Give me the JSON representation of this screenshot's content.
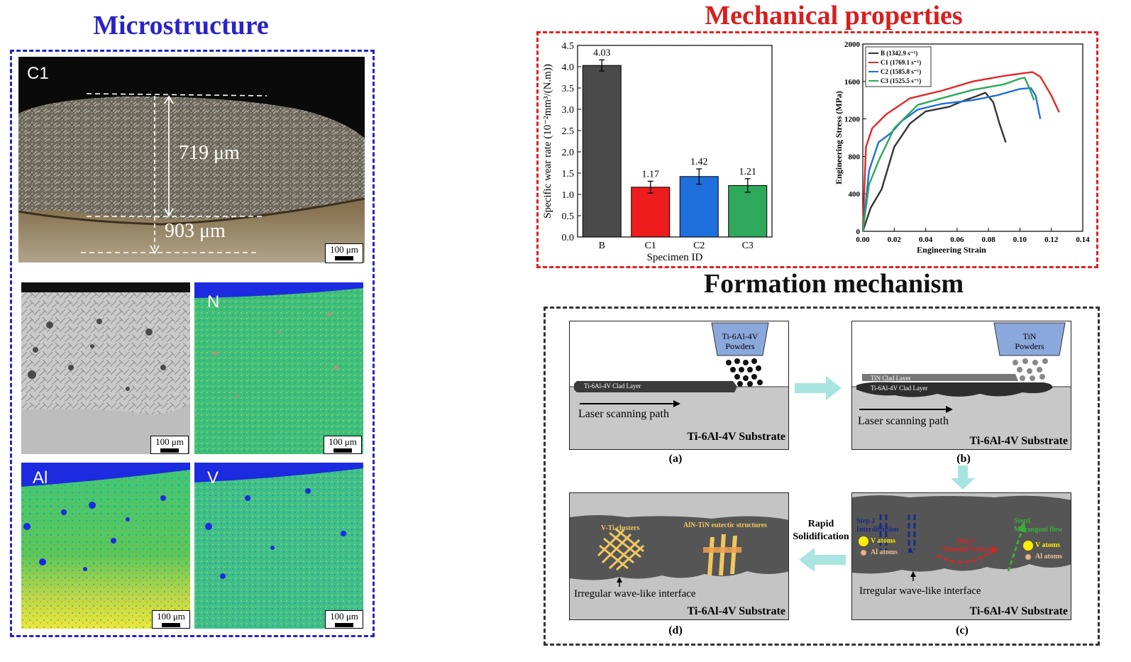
{
  "titles": {
    "microstructure": "Microstructure",
    "mechanical": "Mechanical properties",
    "formation": "Formation mechanism"
  },
  "colors": {
    "micro_border": "#2323c8",
    "micro_title": "#2a22c8",
    "mech_border": "#e02020",
    "mech_title": "#d81e1e",
    "formation_border": "#333333",
    "arrow": "#a8e4e0"
  },
  "micrographs": {
    "c1": {
      "label": "C1",
      "dim1": "719 μm",
      "dim2": "903 μm",
      "scale": "100 μm"
    },
    "maps": [
      {
        "label": "",
        "scale": "100 μm",
        "kind": "sem"
      },
      {
        "label": "N",
        "scale": "100 μm",
        "kind": "n-map"
      },
      {
        "label": "Al",
        "scale": "100 μm",
        "kind": "al-map"
      },
      {
        "label": "V",
        "scale": "100 μm",
        "kind": "v-map"
      }
    ]
  },
  "chart_data": [
    {
      "type": "bar",
      "categories": [
        "B",
        "C1",
        "C2",
        "C3"
      ],
      "values": [
        4.03,
        1.17,
        1.42,
        1.21
      ],
      "errors": [
        0.13,
        0.14,
        0.18,
        0.16
      ],
      "data_labels": [
        "4.03",
        "1.17",
        "1.42",
        "1.21"
      ],
      "colors": [
        "#4a4a4a",
        "#ee1c1c",
        "#1f6fdc",
        "#2ea85a"
      ],
      "title": "",
      "xlabel": "Specimen ID",
      "ylabel": "Specific wear rate (10⁻²mm³/(N.m))",
      "ylim": [
        0.0,
        4.5
      ],
      "yticks": [
        "0.0",
        "0.5",
        "1.0",
        "1.5",
        "2.0",
        "2.5",
        "3.0",
        "3.5",
        "4.0",
        "4.5"
      ]
    },
    {
      "type": "line",
      "title": "",
      "xlabel": "Engineering Strain",
      "ylabel": "Engineering Stress (MPa)",
      "xlim": [
        0.0,
        0.14
      ],
      "ylim": [
        0,
        2000
      ],
      "xticks": [
        "0.00",
        "0.02",
        "0.04",
        "0.06",
        "0.08",
        "0.10",
        "0.12",
        "0.14"
      ],
      "yticks": [
        "0",
        "400",
        "800",
        "1200",
        "1600",
        "2000"
      ],
      "legend_position": "top-left",
      "series": [
        {
          "name": "B (1342.9 s⁻¹)",
          "color": "#333333",
          "x": [
            0,
            0.005,
            0.012,
            0.02,
            0.03,
            0.04,
            0.055,
            0.065,
            0.072,
            0.078,
            0.083,
            0.087,
            0.091
          ],
          "y": [
            0,
            250,
            450,
            900,
            1150,
            1280,
            1330,
            1400,
            1440,
            1480,
            1380,
            1150,
            950
          ]
        },
        {
          "name": "C1 (1769.1 s⁻¹)",
          "color": "#e02828",
          "x": [
            0,
            0.002,
            0.006,
            0.015,
            0.03,
            0.05,
            0.07,
            0.09,
            0.103,
            0.108,
            0.113,
            0.12,
            0.125
          ],
          "y": [
            0,
            900,
            1100,
            1250,
            1420,
            1500,
            1600,
            1660,
            1690,
            1700,
            1650,
            1450,
            1270
          ]
        },
        {
          "name": "C2 (1585.8 s⁻¹)",
          "color": "#1f6fdc",
          "x": [
            0,
            0.004,
            0.01,
            0.018,
            0.025,
            0.035,
            0.05,
            0.07,
            0.085,
            0.1,
            0.107,
            0.11,
            0.113
          ],
          "y": [
            0,
            650,
            950,
            1050,
            1180,
            1300,
            1360,
            1400,
            1450,
            1520,
            1530,
            1450,
            1200
          ]
        },
        {
          "name": "C3 (1525.5 s⁻¹)",
          "color": "#2ea85a",
          "x": [
            0,
            0.004,
            0.01,
            0.02,
            0.035,
            0.05,
            0.07,
            0.09,
            0.1,
            0.103,
            0.106,
            0.109
          ],
          "y": [
            0,
            500,
            750,
            1100,
            1350,
            1420,
            1510,
            1570,
            1630,
            1640,
            1530,
            1400
          ]
        }
      ]
    }
  ],
  "formation": {
    "panel_a": {
      "powder_label": "Ti-6Al-4V\nPowders",
      "clad_label": "Ti-6Al-4V Clad Layer",
      "path_label": "Laser scanning path",
      "substrate_label": "Ti-6Al-4V Substrate",
      "caption": "(a)"
    },
    "panel_b": {
      "powder_label": "TiN\nPowders",
      "tin_label": "TiN Clad Layer",
      "clad_label": "Ti-6Al-4V Clad Layer",
      "path_label": "Laser scanning path",
      "substrate_label": "Ti-6Al-4V Substrate",
      "caption": "(b)"
    },
    "panel_c": {
      "step2": "Step 2\nInterdiffusion",
      "step3": "Step 3\nToroidal Vortex",
      "step1": "Step1\nMarangoni flow",
      "v_atoms_left": "V atoms",
      "al_atoms_left": "Al atoms",
      "v_atoms_right": "V atoms",
      "al_atoms_right": "Al atoms",
      "interface_label": "Irregular wave-like interface",
      "substrate_label": "Ti-6Al-4V Substrate",
      "caption": "(c)"
    },
    "panel_d": {
      "vti_label": "V-Ti clusters",
      "aln_label": "AlN-TiN eutectic structures",
      "interface_label": "Irregular wave-like interface",
      "substrate_label": "Ti-6Al-4V Substrate",
      "caption": "(d)"
    },
    "rapid_label": "Rapid\nSolidification"
  }
}
